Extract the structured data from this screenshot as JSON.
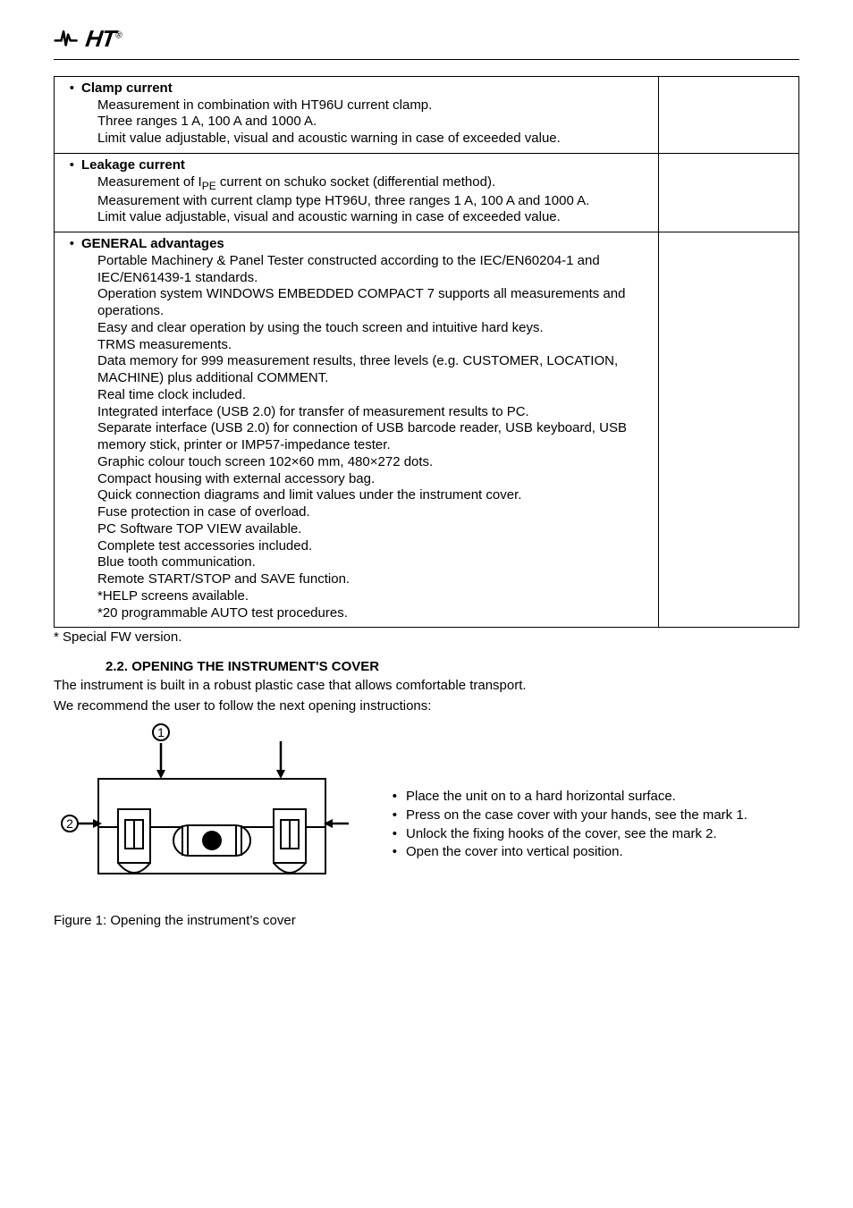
{
  "colors": {
    "page_bg": "#ffffff",
    "text": "#000000",
    "border": "#000000"
  },
  "logo": {
    "text": "HT",
    "reg": "®"
  },
  "table": {
    "rows": [
      {
        "title": "Clamp current",
        "lines": [
          "Measurement in combination with HT96U current clamp.",
          "Three ranges 1 A, 100 A and 1000 A.",
          "Limit value adjustable, visual and acoustic warning in case of exceeded value."
        ]
      },
      {
        "title": "Leakage current",
        "lines_html": [
          "Measurement of I<sub class=\"ipe-sub\">PE</sub> current on schuko socket (differential method).",
          "Measurement with current clamp type HT96U, three ranges 1 A, 100 A and 1000 A.",
          "Limit value adjustable, visual and acoustic warning in case of exceeded value."
        ]
      },
      {
        "title": "GENERAL advantages",
        "lines": [
          "Portable Machinery & Panel Tester constructed according to the IEC/EN60204-1 and IEC/EN61439-1 standards.",
          "Operation system WINDOWS EMBEDDED COMPACT 7 supports all measurements and operations.",
          "Easy and clear operation by using the touch screen and intuitive hard keys.",
          "TRMS measurements.",
          "Data memory for 999 measurement results, three levels (e.g. CUSTOMER, LOCATION, MACHINE) plus additional COMMENT.",
          "Real time clock included.",
          "Integrated interface (USB 2.0) for transfer of measurement results to PC.",
          "Separate interface (USB 2.0) for connection of USB barcode reader, USB keyboard, USB memory stick, printer or IMP57-impedance tester.",
          "Graphic colour touch screen 102×60 mm, 480×272 dots.",
          "Compact housing with external accessory bag.",
          "Quick connection diagrams and limit values under the instrument cover.",
          "Fuse protection in case of overload.",
          "PC Software TOP VIEW available.",
          "Complete test accessories included.",
          "Blue tooth communication.",
          "Remote START/STOP and SAVE function.",
          "*HELP screens available.",
          "*20 programmable AUTO test procedures."
        ]
      }
    ]
  },
  "footnote": "* Special FW version.",
  "section": {
    "number": "2.2.",
    "title": "OPENING THE INSTRUMENT'S COVER"
  },
  "intro_lines": [
    "The instrument is built in a robust plastic case that allows comfortable transport.",
    "We recommend the user to follow the next opening instructions:"
  ],
  "right_bullets": [
    "Place the unit on to a hard horizontal surface.",
    "Press on the case cover with your hands, see the mark 1.",
    "Unlock the fixing hooks of the cover, see the mark 2.",
    "Open the cover into vertical position."
  ],
  "figure_caption": "Figure 1: Opening the instrument’s cover",
  "figure_labels": {
    "mark1": "1",
    "mark2": "2"
  }
}
